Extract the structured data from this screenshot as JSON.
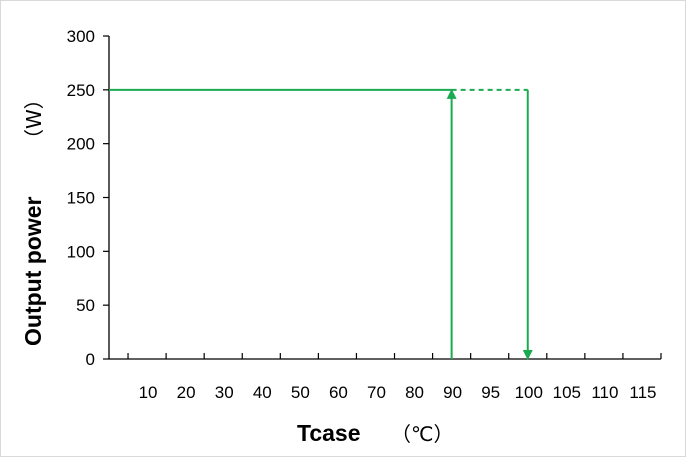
{
  "chart_data": {
    "type": "line",
    "title": "",
    "xlabel": "Tcase",
    "xunit": "（℃）",
    "ylabel": "Output power",
    "yunit": "（W）",
    "categories": [
      "",
      "10",
      "20",
      "30",
      "40",
      "50",
      "60",
      "70",
      "80",
      "90",
      "95",
      "100",
      "105",
      "110",
      "115"
    ],
    "yticks": [
      0,
      50,
      100,
      150,
      200,
      250,
      300
    ],
    "ylim": [
      0,
      300
    ],
    "grid": false,
    "legend": "none",
    "color": "#1aab50",
    "series": [
      {
        "style": "solid",
        "points": [
          [
            "",
            250
          ],
          [
            "90",
            250
          ]
        ]
      },
      {
        "style": "dashed",
        "points": [
          [
            "90",
            250
          ],
          [
            "100",
            250
          ]
        ]
      },
      {
        "style": "solid-arrow",
        "points": [
          [
            "90",
            0
          ],
          [
            "90",
            250
          ]
        ]
      },
      {
        "style": "solid-arrow",
        "points": [
          [
            "100",
            250
          ],
          [
            "100",
            0
          ]
        ]
      }
    ]
  }
}
